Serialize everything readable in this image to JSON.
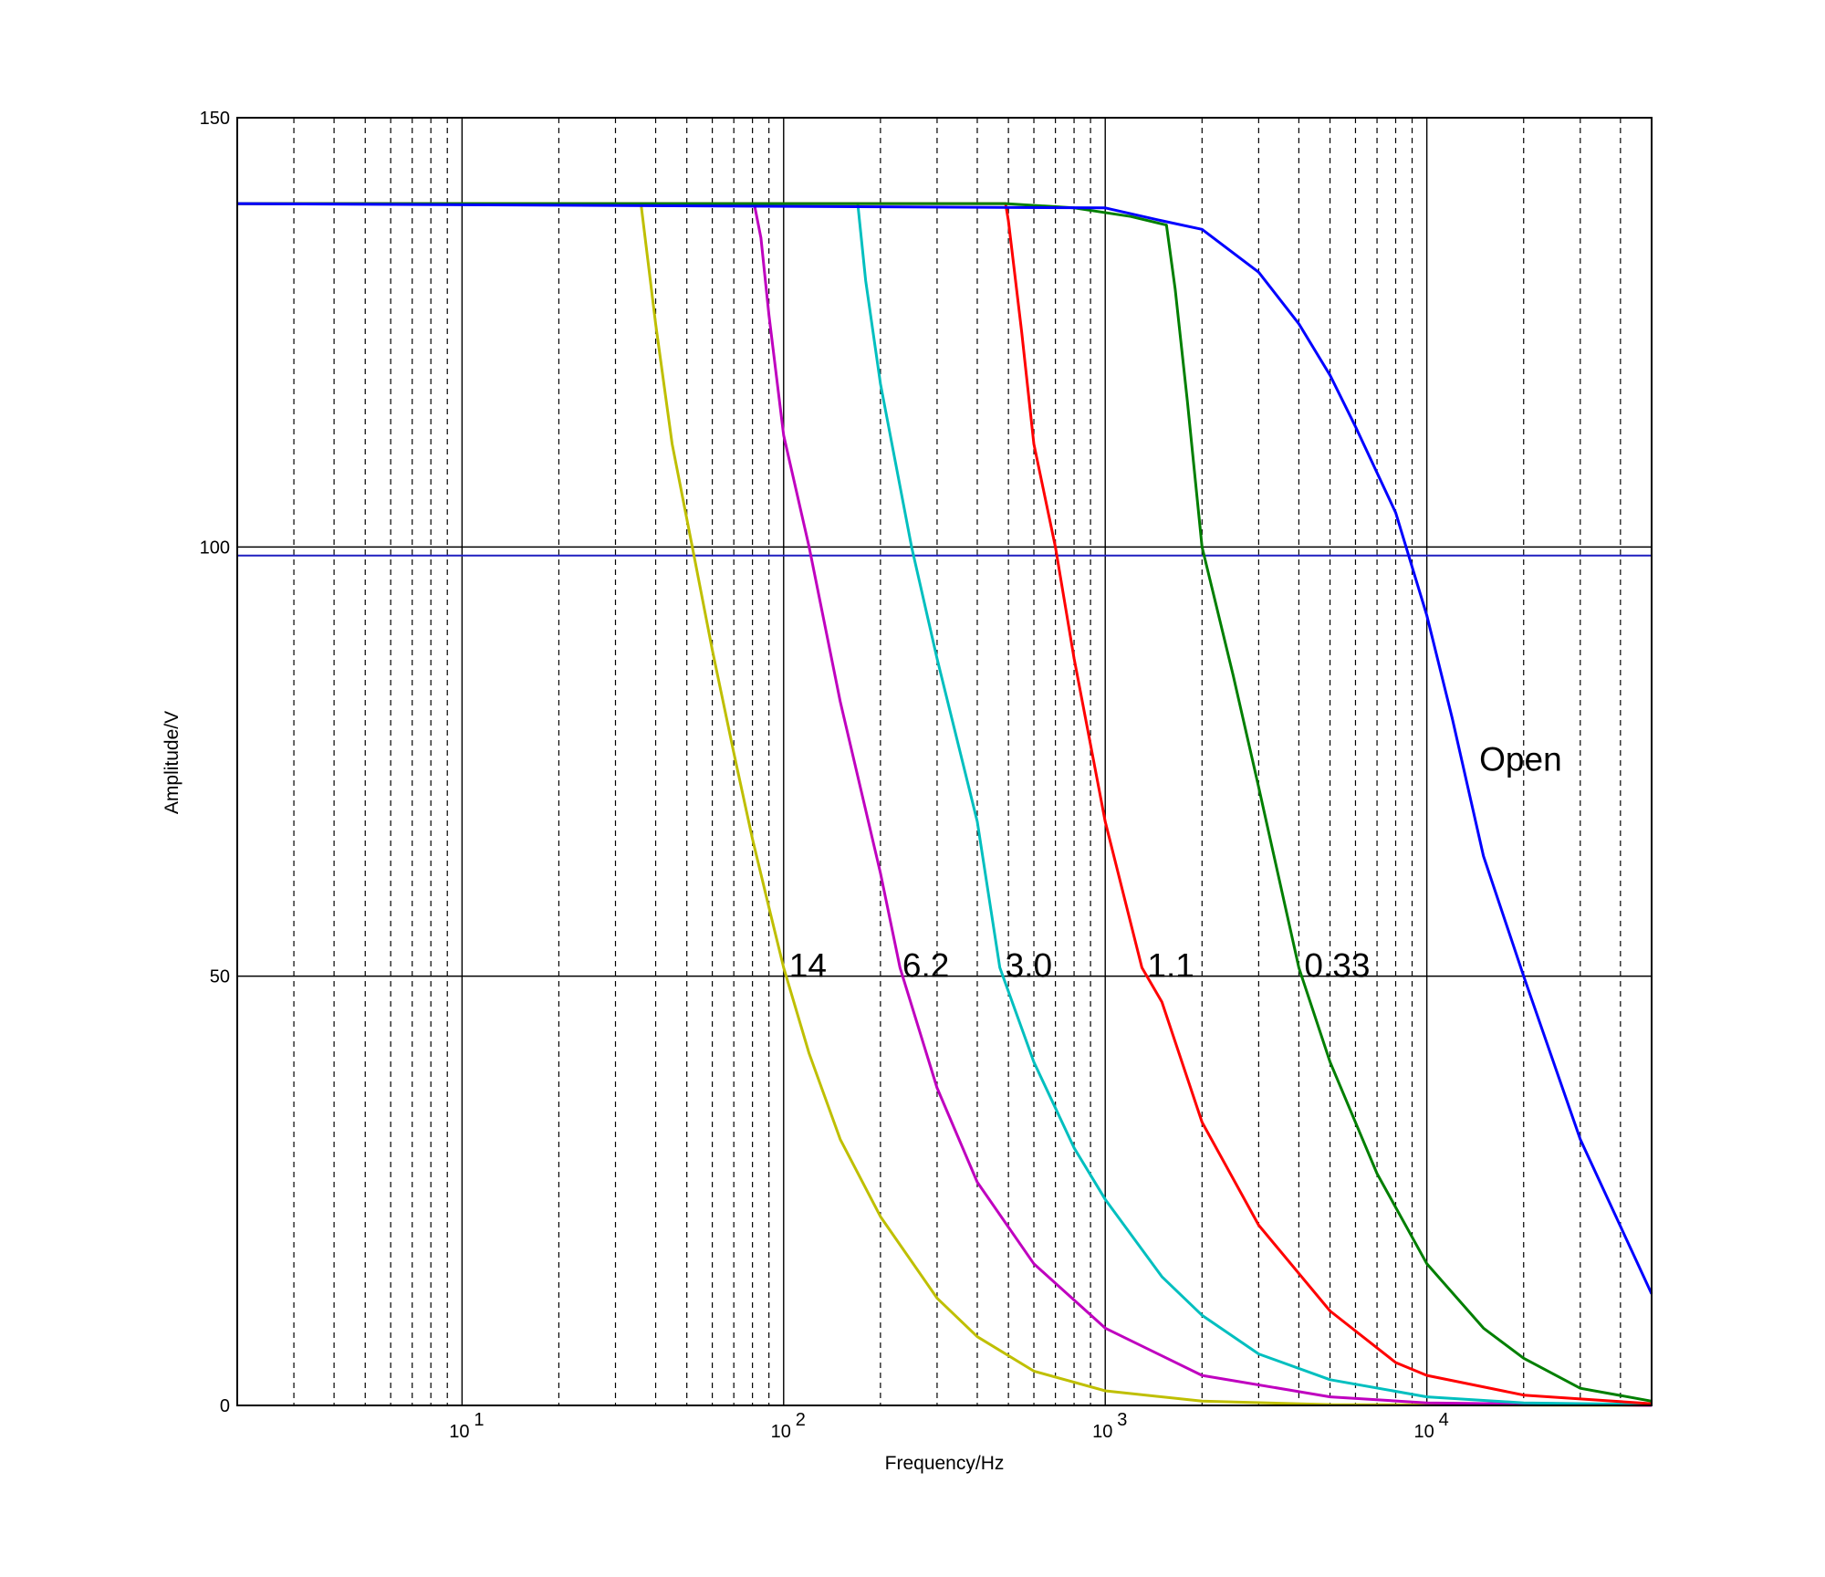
{
  "chart_data": {
    "type": "line",
    "x_scale": "log",
    "xlim": [
      2,
      50000
    ],
    "ylim": [
      0,
      150
    ],
    "xlabel": "Frequency/Hz",
    "ylabel": "Amplitude/V",
    "grid": "log-minor-dashed",
    "x_major_ticks": [
      {
        "value": 10,
        "base": "10",
        "exp": "1"
      },
      {
        "value": 100,
        "base": "10",
        "exp": "2"
      },
      {
        "value": 1000,
        "base": "10",
        "exp": "3"
      },
      {
        "value": 10000,
        "base": "10",
        "exp": "4"
      }
    ],
    "y_ticks": [
      {
        "value": 0,
        "label": "0"
      },
      {
        "value": 50,
        "label": "50"
      },
      {
        "value": 100,
        "label": "100"
      },
      {
        "value": 150,
        "label": "150"
      }
    ],
    "reference_line": {
      "y": 99,
      "color": "#1f1fbf"
    },
    "series": [
      {
        "name": "14",
        "color": "#bfbf00",
        "label_at": [
          100,
          51
        ],
        "points": [
          [
            2,
            140
          ],
          [
            36,
            140
          ],
          [
            40,
            126
          ],
          [
            45,
            112
          ],
          [
            52,
            100
          ],
          [
            60,
            88
          ],
          [
            70,
            76
          ],
          [
            80,
            66
          ],
          [
            90,
            58
          ],
          [
            100,
            51
          ],
          [
            120,
            41
          ],
          [
            150,
            31
          ],
          [
            200,
            22
          ],
          [
            300,
            12.5
          ],
          [
            400,
            8
          ],
          [
            600,
            4
          ],
          [
            1000,
            1.7
          ],
          [
            2000,
            0.5
          ],
          [
            5000,
            0.1
          ],
          [
            50000,
            0
          ]
        ]
      },
      {
        "name": "6.2",
        "color": "#bf00bf",
        "label_at": [
          225,
          51
        ],
        "points": [
          [
            2,
            140
          ],
          [
            81,
            140
          ],
          [
            85,
            136
          ],
          [
            90,
            127
          ],
          [
            100,
            113
          ],
          [
            120,
            100
          ],
          [
            150,
            82
          ],
          [
            200,
            62
          ],
          [
            230,
            51
          ],
          [
            300,
            37
          ],
          [
            400,
            26
          ],
          [
            600,
            16.5
          ],
          [
            1000,
            9
          ],
          [
            2000,
            3.5
          ],
          [
            5000,
            1
          ],
          [
            10000,
            0.3
          ],
          [
            50000,
            0
          ]
        ]
      },
      {
        "name": "3.0",
        "color": "#00bfbf",
        "label_at": [
          470,
          51
        ],
        "points": [
          [
            2,
            140
          ],
          [
            170,
            140
          ],
          [
            180,
            131
          ],
          [
            200,
            119
          ],
          [
            250,
            100
          ],
          [
            300,
            87
          ],
          [
            400,
            68
          ],
          [
            470,
            51
          ],
          [
            600,
            40
          ],
          [
            800,
            30
          ],
          [
            1000,
            24
          ],
          [
            1500,
            15
          ],
          [
            2000,
            10.5
          ],
          [
            3000,
            6
          ],
          [
            5000,
            3
          ],
          [
            10000,
            1
          ],
          [
            20000,
            0.3
          ],
          [
            50000,
            0.1
          ]
        ]
      },
      {
        "name": "1.1",
        "color": "#ff0000",
        "label_at": [
          1300,
          51
        ],
        "points": [
          [
            2,
            140
          ],
          [
            490,
            140
          ],
          [
            500,
            138
          ],
          [
            550,
            125
          ],
          [
            600,
            112
          ],
          [
            700,
            100
          ],
          [
            800,
            87
          ],
          [
            1000,
            68
          ],
          [
            1300,
            51
          ],
          [
            1500,
            47
          ],
          [
            2000,
            33
          ],
          [
            3000,
            21
          ],
          [
            5000,
            11
          ],
          [
            8000,
            5
          ],
          [
            10000,
            3.5
          ],
          [
            20000,
            1.2
          ],
          [
            50000,
            0.2
          ]
        ]
      },
      {
        "name": "0.33",
        "color": "#007f00",
        "label_at": [
          4000,
          51
        ],
        "points": [
          [
            2,
            140
          ],
          [
            490,
            140
          ],
          [
            800,
            139.5
          ],
          [
            1200,
            138.5
          ],
          [
            1550,
            137.5
          ],
          [
            1650,
            130
          ],
          [
            1800,
            117
          ],
          [
            2000,
            100
          ],
          [
            2500,
            85
          ],
          [
            3000,
            72
          ],
          [
            4000,
            51
          ],
          [
            5000,
            40
          ],
          [
            7000,
            27
          ],
          [
            10000,
            16.5
          ],
          [
            15000,
            9
          ],
          [
            20000,
            5.5
          ],
          [
            30000,
            2
          ],
          [
            50000,
            0.5
          ]
        ]
      },
      {
        "name": "Open",
        "color": "#0000ff",
        "label_at": [
          14000,
          75
        ],
        "points": [
          [
            2,
            140
          ],
          [
            1000,
            139.5
          ],
          [
            1500,
            138
          ],
          [
            2000,
            137
          ],
          [
            3000,
            132
          ],
          [
            4000,
            126
          ],
          [
            5000,
            120
          ],
          [
            6000,
            114
          ],
          [
            8000,
            104
          ],
          [
            10000,
            92
          ],
          [
            12000,
            80
          ],
          [
            15000,
            64
          ],
          [
            20000,
            50
          ],
          [
            30000,
            31
          ],
          [
            50000,
            13
          ]
        ]
      }
    ]
  }
}
